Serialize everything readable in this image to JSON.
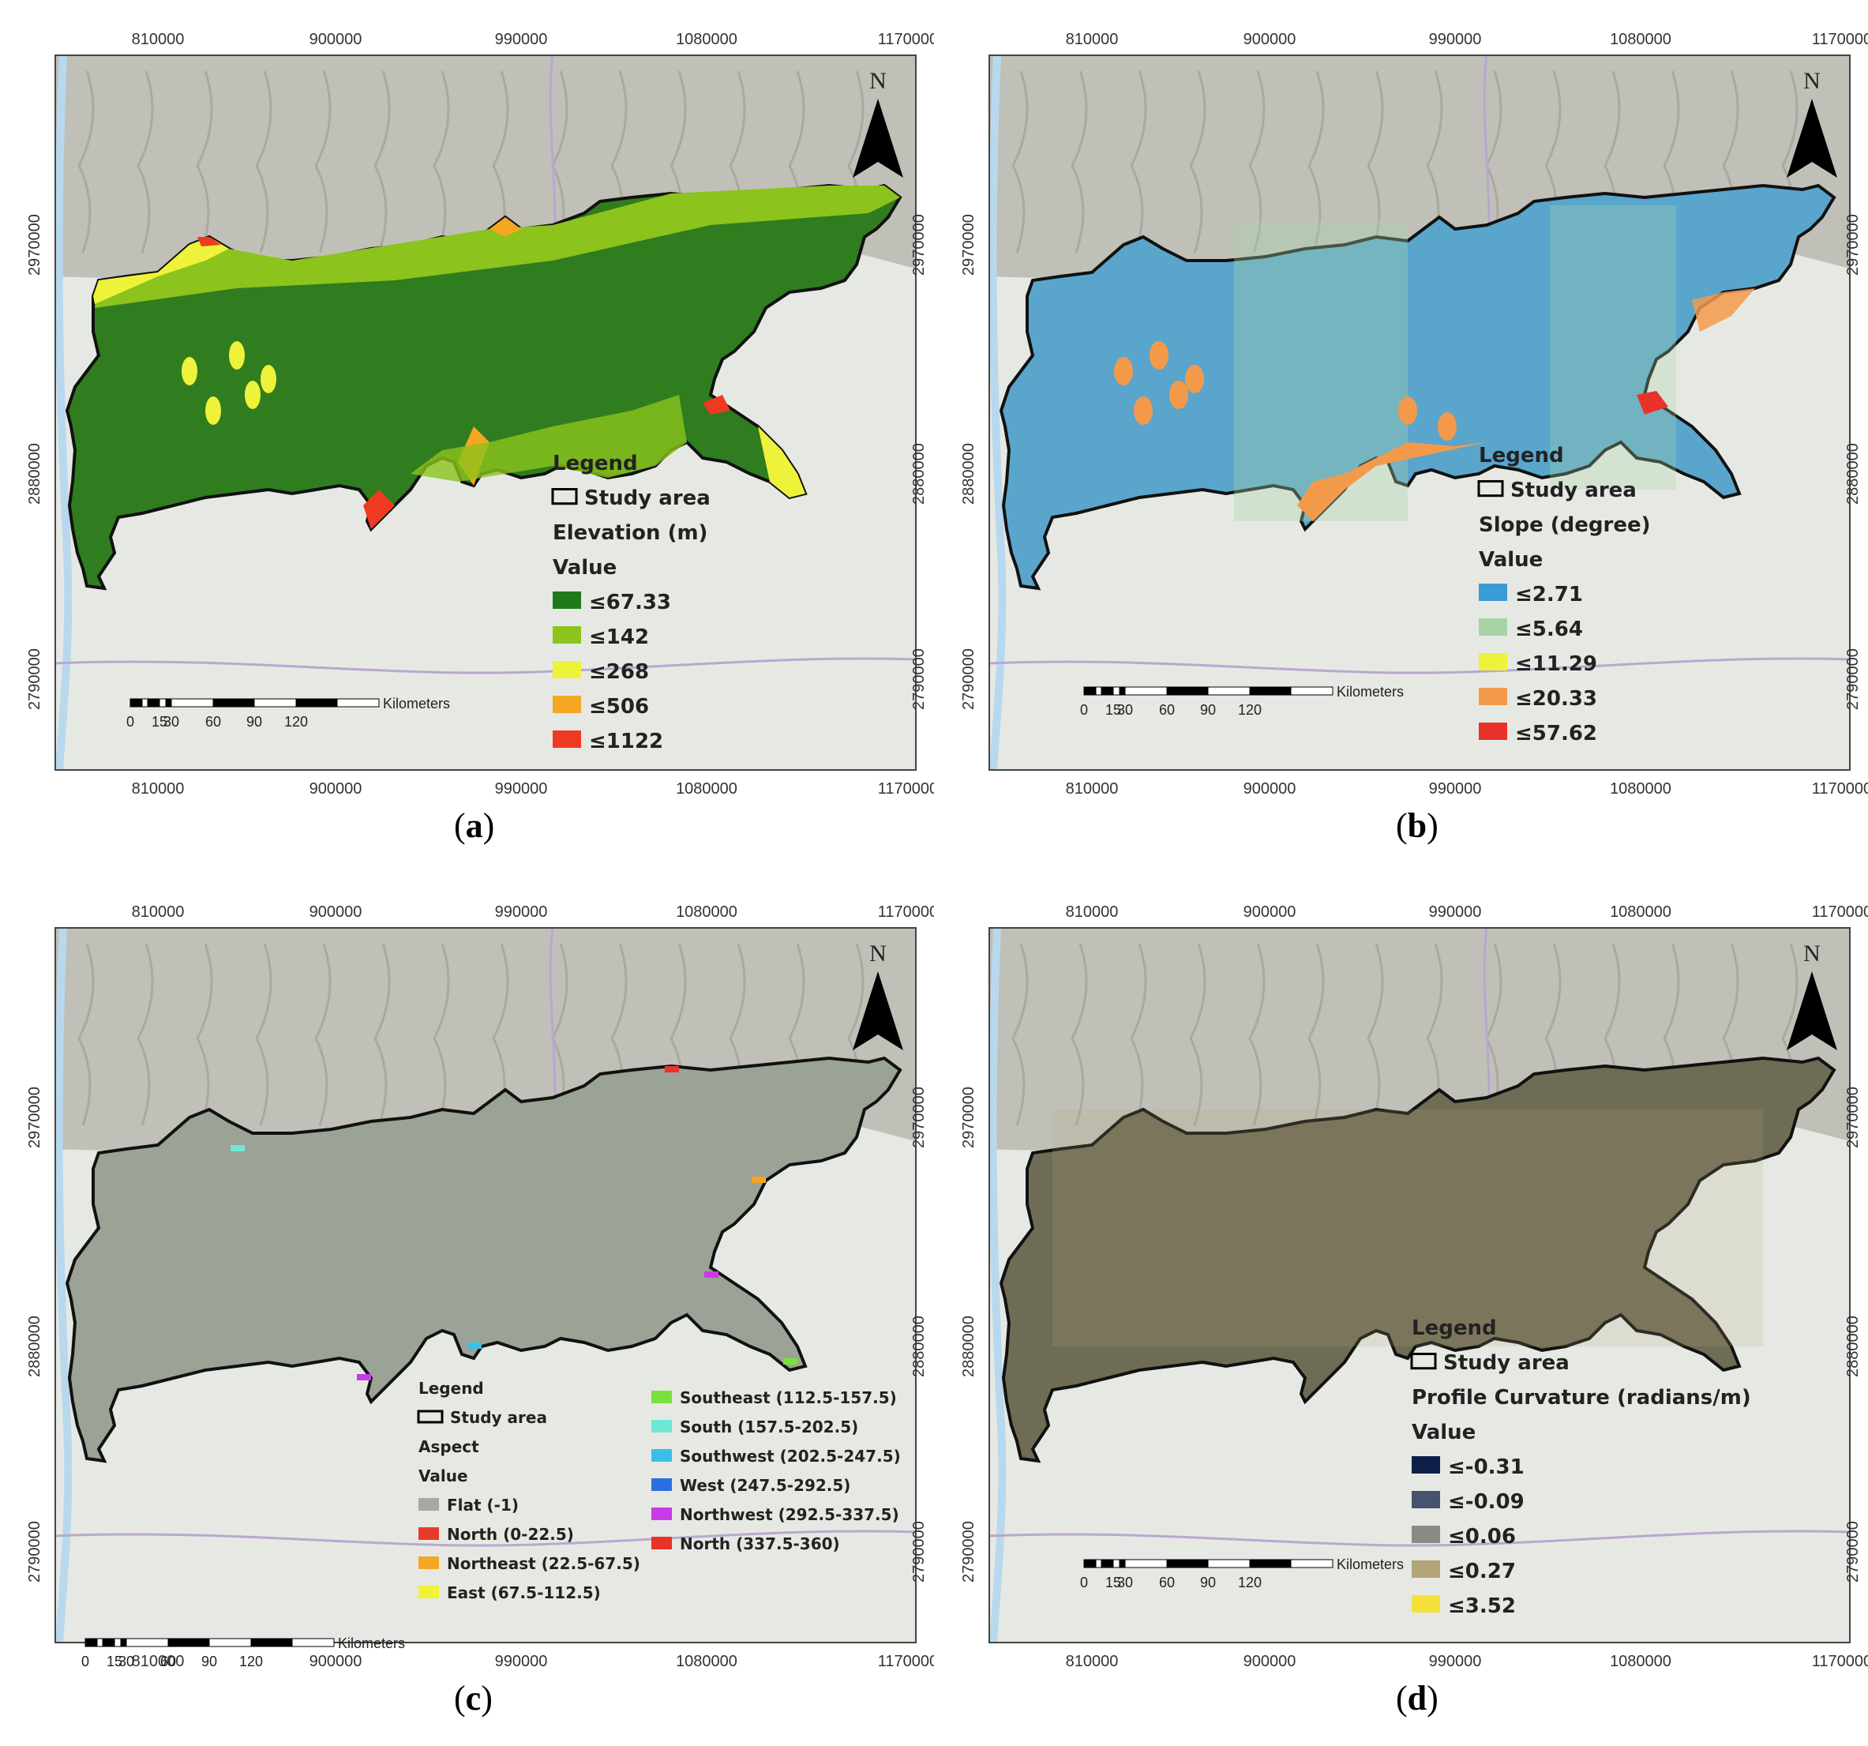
{
  "x_ticks": [
    "810000",
    "900000",
    "990000",
    "1080000",
    "1170000"
  ],
  "y_ticks": [
    "2970000",
    "2880000",
    "2790000"
  ],
  "north": "N",
  "scale": {
    "unit": "Kilometers",
    "labels": [
      "0",
      "15",
      "30",
      "60",
      "90",
      "120"
    ]
  },
  "legend_common": {
    "title": "Legend",
    "study_area": "Study area",
    "value": "Value"
  },
  "colors": {
    "terrain": "#e6e9e3",
    "hills": "#b8b8b0",
    "study_outline": "#111111"
  },
  "panels": [
    {
      "caption": "a",
      "layer": "Elevation (m)",
      "fill": "#2f7d1f",
      "classes": [
        {
          "label": "≤67.33",
          "color": "#1f7a1a"
        },
        {
          "label": "≤142",
          "color": "#8cc31c"
        },
        {
          "label": "≤268",
          "color": "#eef23a"
        },
        {
          "label": "≤506",
          "color": "#f5a623"
        },
        {
          "label": "≤1122",
          "color": "#ef3a22"
        }
      ]
    },
    {
      "caption": "b",
      "layer": "Slope (degree)",
      "fill": "#5aa5cc",
      "classes": [
        {
          "label": "≤2.71",
          "color": "#3b9bd6"
        },
        {
          "label": "≤5.64",
          "color": "#a8d3a8"
        },
        {
          "label": "≤11.29",
          "color": "#eef23a"
        },
        {
          "label": "≤20.33",
          "color": "#f39a4a"
        },
        {
          "label": "≤57.62",
          "color": "#e8322a"
        }
      ]
    },
    {
      "caption": "c",
      "layer": "Aspect",
      "fill": "#9aa396",
      "classes": [
        {
          "label": "Flat (-1)",
          "color": "#a7a7a7"
        },
        {
          "label": "North (0-22.5)",
          "color": "#e83a2a"
        },
        {
          "label": "Northeast (22.5-67.5)",
          "color": "#f5a623"
        },
        {
          "label": "East (67.5-112.5)",
          "color": "#f2f23a"
        },
        {
          "label": "Southeast (112.5-157.5)",
          "color": "#7ae03a"
        },
        {
          "label": "South (157.5-202.5)",
          "color": "#6fe8d6"
        },
        {
          "label": "Southwest (202.5-247.5)",
          "color": "#3ac0e8"
        },
        {
          "label": "West (247.5-292.5)",
          "color": "#2a6fe0"
        },
        {
          "label": "Northwest (292.5-337.5)",
          "color": "#c93ae8"
        },
        {
          "label": "North (337.5-360)",
          "color": "#e8322a"
        }
      ]
    },
    {
      "caption": "d",
      "layer": "Profile Curvature (radians/m)",
      "fill": "#6f6c55",
      "classes": [
        {
          "label": "≤-0.31",
          "color": "#0f1f4a"
        },
        {
          "label": "≤-0.09",
          "color": "#47536e"
        },
        {
          "label": "≤0.06",
          "color": "#8a8a86"
        },
        {
          "label": "≤0.27",
          "color": "#b3a57a"
        },
        {
          "label": "≤3.52",
          "color": "#f5e13a"
        }
      ]
    }
  ]
}
